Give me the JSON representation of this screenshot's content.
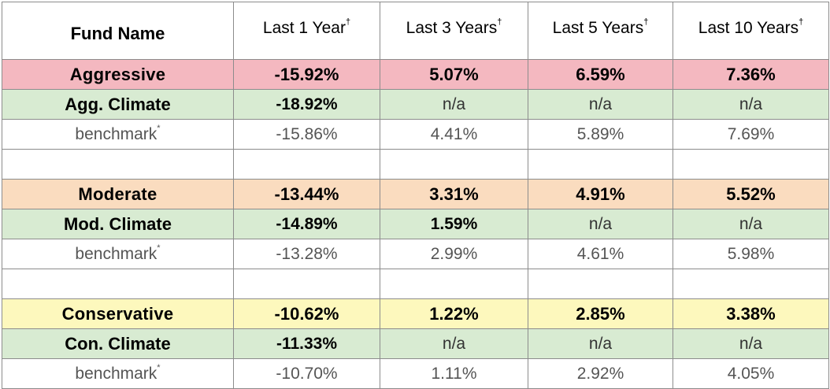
{
  "header": {
    "fund_name": "Fund Name",
    "periods": [
      "Last 1 Year",
      "Last 3 Years",
      "Last 5 Years",
      "Last 10 Years"
    ],
    "period_marker": "†"
  },
  "benchmark_marker": "*",
  "colors": {
    "aggressive": "#f4b8c0",
    "moderate": "#fadcbf",
    "conservative": "#fdf8bd",
    "climate": "#d8ebd2",
    "benchmark": "#ffffff"
  },
  "groups": [
    {
      "fund": {
        "label": "Aggressive",
        "values": [
          "-15.92%",
          "5.07%",
          "6.59%",
          "7.36%"
        ]
      },
      "climate": {
        "label": "Agg. Climate",
        "values": [
          "-18.92%",
          "n/a",
          "n/a",
          "n/a"
        ]
      },
      "benchmark": {
        "label": "benchmark",
        "values": [
          "-15.86%",
          "4.41%",
          "5.89%",
          "7.69%"
        ]
      }
    },
    {
      "fund": {
        "label": "Moderate",
        "values": [
          "-13.44%",
          "3.31%",
          "4.91%",
          "5.52%"
        ]
      },
      "climate": {
        "label": "Mod. Climate",
        "values": [
          "-14.89%",
          "1.59%",
          "n/a",
          "n/a"
        ]
      },
      "benchmark": {
        "label": "benchmark",
        "values": [
          "-13.28%",
          "2.99%",
          "4.61%",
          "5.98%"
        ]
      }
    },
    {
      "fund": {
        "label": "Conservative",
        "values": [
          "-10.62%",
          "1.22%",
          "2.85%",
          "3.38%"
        ]
      },
      "climate": {
        "label": "Con. Climate",
        "values": [
          "-11.33%",
          "n/a",
          "n/a",
          "n/a"
        ]
      },
      "benchmark": {
        "label": "benchmark",
        "values": [
          "-10.70%",
          "1.11%",
          "2.92%",
          "4.05%"
        ]
      }
    }
  ]
}
